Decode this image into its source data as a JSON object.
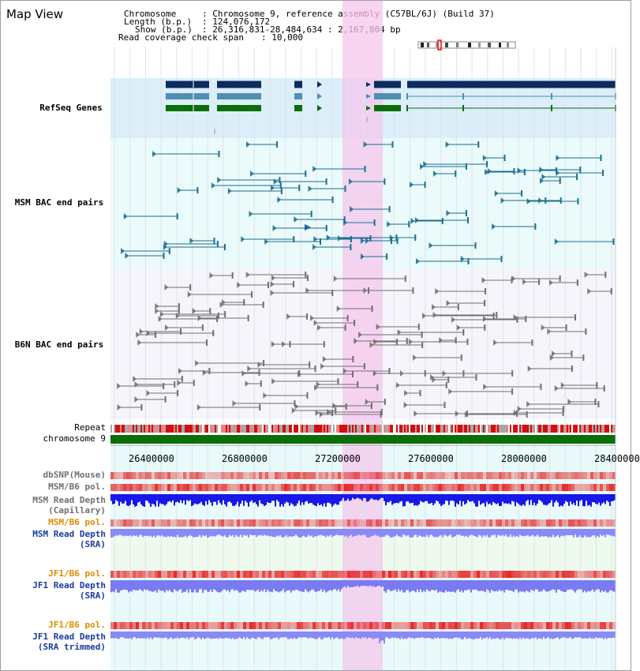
{
  "window": {
    "title": "Map View"
  },
  "info": {
    "chromosome_label": "Chromosome",
    "chromosome_value": ": Chromosome 9, reference assembly (C57BL/6J) (Build 37)",
    "length_label": "Length (b.p.)",
    "length_value": ": 124,076,172",
    "show_label": "Show (b.p.)",
    "show_value": ": 26,316,831-28,484,634 : 2,167,804 bp",
    "coverage_label": "Read coverage check span",
    "coverage_value": ": 10,000"
  },
  "tracks": {
    "refseq": "RefSeq Genes",
    "msm_bac": "MSM BAC end pairs",
    "b6n_bac": "B6N BAC end pairs",
    "repeat": "Repeat",
    "chromosome": "chromosome 9",
    "dbsnp": "dbSNP(Mouse)",
    "msm_b6_pol_1": "MSM/B6 pol.",
    "msm_read_depth_cap_1": "MSM Read Depth",
    "msm_read_depth_cap_2": "(Capillary)",
    "msm_b6_pol_2": "MSM/B6 pol.",
    "msm_read_depth_sra_1": "MSM Read Depth",
    "msm_read_depth_sra_2": "(SRA)",
    "jf1_b6_pol_1": "JF1/B6 pol.",
    "jf1_read_depth_1": "JF1 Read Depth",
    "jf1_read_depth_2": "(SRA)",
    "jf1_b6_pol_2": "JF1/B6 pol.",
    "jf1_read_depth_trim_1": "JF1 Read Depth",
    "jf1_read_depth_trim_2": "(SRA trimmed)"
  },
  "axis": {
    "ticks": [
      "26400000",
      "26800000",
      "27200000",
      "27600000",
      "28000000",
      "28400000"
    ]
  },
  "colors": {
    "refseq_dark": "#0d2b5e",
    "refseq_light": "#4f8fb5",
    "refseq_green": "#0a6e0a",
    "msm_bac": "#1a6f8f",
    "b6n_bac": "#707070",
    "highlight": "#f5c6ec",
    "repeat_red": "#d01010",
    "chromosome_green": "#0a6e0a",
    "label_blue": "#1a3aa0",
    "label_orange": "#e08a00",
    "label_teal": "#1a6f8f",
    "label_gray": "#707070"
  }
}
